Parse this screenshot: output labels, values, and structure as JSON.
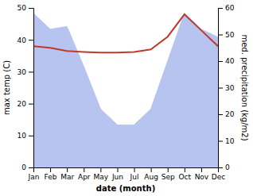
{
  "chart_data": {
    "type": "line",
    "categories": [
      "Jan",
      "Feb",
      "Mar",
      "Apr",
      "May",
      "Jun",
      "Jul",
      "Aug",
      "Sep",
      "Oct",
      "Nov",
      "Dec"
    ],
    "series": [
      {
        "type": "area",
        "axis": "y2",
        "color": "#b8c4f0",
        "values": [
          58,
          52,
          53,
          38,
          22,
          16,
          16,
          22,
          40,
          58,
          52,
          49
        ]
      },
      {
        "type": "line",
        "color": "#c0392b",
        "values": [
          38.0,
          37.5,
          36.5,
          36.2,
          36.0,
          36.0,
          36.2,
          37.0,
          41.0,
          48.0,
          43.0,
          38.0
        ]
      }
    ],
    "xlabel": "date (month)",
    "ylabel": "max temp (C)",
    "y2label": "med. precipitation (kg/m2)",
    "ylim": [
      0,
      50
    ],
    "yticks": [
      0,
      10,
      20,
      30,
      40,
      50
    ],
    "y2lim": [
      0,
      60
    ],
    "y2ticks": [
      0,
      10,
      20,
      30,
      40,
      50,
      60
    ],
    "grid": false
  }
}
